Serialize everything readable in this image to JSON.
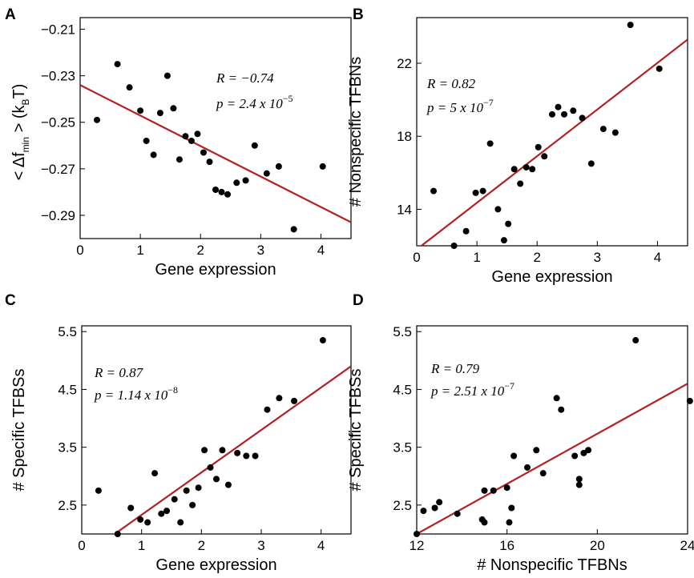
{
  "panels": [
    {
      "letter": "A"
    },
    {
      "letter": "B"
    },
    {
      "letter": "C"
    },
    {
      "letter": "D"
    }
  ],
  "chart_data": [
    {
      "panel": "A",
      "type": "scatter",
      "xlabel": "Gene expression",
      "ylabel": "< Δf_min > (k_B T)",
      "xlim": [
        0,
        4.5
      ],
      "ylim": [
        -0.3,
        -0.205
      ],
      "xticks": [
        "0",
        "1",
        "2",
        "3",
        "4"
      ],
      "yticks": [
        "-0.21",
        "-0.23",
        "-0.25",
        "-0.27",
        "-0.29"
      ],
      "stats": {
        "R": "R = −0.74",
        "p": "p = 2.4 x 10",
        "p_exp": "−5"
      },
      "regression": {
        "x": [
          0,
          4.5
        ],
        "y": [
          -0.234,
          -0.293
        ]
      },
      "points": [
        [
          0.28,
          -0.249
        ],
        [
          0.62,
          -0.225
        ],
        [
          0.82,
          -0.235
        ],
        [
          1.0,
          -0.245
        ],
        [
          1.1,
          -0.258
        ],
        [
          1.22,
          -0.264
        ],
        [
          1.33,
          -0.246
        ],
        [
          1.45,
          -0.23
        ],
        [
          1.55,
          -0.244
        ],
        [
          1.65,
          -0.266
        ],
        [
          1.75,
          -0.256
        ],
        [
          1.85,
          -0.258
        ],
        [
          1.95,
          -0.255
        ],
        [
          2.05,
          -0.263
        ],
        [
          2.15,
          -0.267
        ],
        [
          2.25,
          -0.279
        ],
        [
          2.35,
          -0.28
        ],
        [
          2.45,
          -0.281
        ],
        [
          2.6,
          -0.276
        ],
        [
          2.75,
          -0.275
        ],
        [
          2.9,
          -0.26
        ],
        [
          3.1,
          -0.272
        ],
        [
          3.3,
          -0.269
        ],
        [
          3.55,
          -0.296
        ],
        [
          4.03,
          -0.269
        ]
      ]
    },
    {
      "panel": "B",
      "type": "scatter",
      "xlabel": "Gene expression",
      "ylabel": "# Nonspecific TFBNs",
      "xlim": [
        0,
        4.5
      ],
      "ylim": [
        12,
        24.5
      ],
      "xticks": [
        "0",
        "1",
        "2",
        "3",
        "4"
      ],
      "yticks": [
        "14",
        "18",
        "22"
      ],
      "stats": {
        "R": "R = 0.82",
        "p": "p = 5 x 10",
        "p_exp": "−7"
      },
      "regression": {
        "x": [
          0,
          4.5
        ],
        "y": [
          11.8,
          23.3
        ]
      },
      "points": [
        [
          0.28,
          15.0
        ],
        [
          0.62,
          12.0
        ],
        [
          0.82,
          12.8
        ],
        [
          0.98,
          14.9
        ],
        [
          1.1,
          15.0
        ],
        [
          1.22,
          17.6
        ],
        [
          1.35,
          14.0
        ],
        [
          1.45,
          12.3
        ],
        [
          1.52,
          13.2
        ],
        [
          1.62,
          16.2
        ],
        [
          1.72,
          15.4
        ],
        [
          1.82,
          16.3
        ],
        [
          1.92,
          16.2
        ],
        [
          2.02,
          17.4
        ],
        [
          2.12,
          16.9
        ],
        [
          2.25,
          19.2
        ],
        [
          2.35,
          19.6
        ],
        [
          2.45,
          19.2
        ],
        [
          2.6,
          19.4
        ],
        [
          2.75,
          19.0
        ],
        [
          2.9,
          16.5
        ],
        [
          3.1,
          18.4
        ],
        [
          3.3,
          18.2
        ],
        [
          3.55,
          24.1
        ],
        [
          4.03,
          21.7
        ]
      ]
    },
    {
      "panel": "C",
      "type": "scatter",
      "xlabel": "Gene expression",
      "ylabel": "# Specific TFBSs",
      "xlim": [
        0,
        4.5
      ],
      "ylim": [
        2.0,
        5.6
      ],
      "xticks": [
        "0",
        "1",
        "2",
        "3",
        "4"
      ],
      "yticks": [
        "2.5",
        "3.5",
        "4.5",
        "5.5"
      ],
      "stats": {
        "R": "R = 0.87",
        "p": "p = 1.14 x 10",
        "p_exp": "−8"
      },
      "regression": {
        "x": [
          0.55,
          4.5
        ],
        "y": [
          2.0,
          4.9
        ]
      },
      "points": [
        [
          0.28,
          2.75
        ],
        [
          0.82,
          2.45
        ],
        [
          0.98,
          2.25
        ],
        [
          1.1,
          2.2
        ],
        [
          1.22,
          3.05
        ],
        [
          1.33,
          2.35
        ],
        [
          1.42,
          2.4
        ],
        [
          1.55,
          2.6
        ],
        [
          1.65,
          2.2
        ],
        [
          1.75,
          2.75
        ],
        [
          1.85,
          2.5
        ],
        [
          1.95,
          2.8
        ],
        [
          2.05,
          3.45
        ],
        [
          2.15,
          3.15
        ],
        [
          2.25,
          2.95
        ],
        [
          2.35,
          3.45
        ],
        [
          2.45,
          2.85
        ],
        [
          2.6,
          3.4
        ],
        [
          2.75,
          3.35
        ],
        [
          2.9,
          3.35
        ],
        [
          3.1,
          4.15
        ],
        [
          3.3,
          4.35
        ],
        [
          3.55,
          4.3
        ],
        [
          4.03,
          5.35
        ],
        [
          0.6,
          2.0
        ]
      ]
    },
    {
      "panel": "D",
      "type": "scatter",
      "xlabel": "# Nonspecific TFBNs",
      "ylabel": "# Specific TFBSs",
      "xlim": [
        12,
        24
      ],
      "ylim": [
        2.0,
        5.6
      ],
      "xticks": [
        "12",
        "16",
        "20",
        "24"
      ],
      "yticks": [
        "2.5",
        "3.5",
        "4.5",
        "5.5"
      ],
      "stats": {
        "R": "R = 0.79",
        "p": "p = 2.51 x 10",
        "p_exp": "−7"
      },
      "regression": {
        "x": [
          12,
          24
        ],
        "y": [
          2.0,
          4.6
        ]
      },
      "points": [
        [
          12.0,
          2.0
        ],
        [
          12.3,
          2.4
        ],
        [
          12.8,
          2.45
        ],
        [
          13.0,
          2.55
        ],
        [
          13.8,
          2.35
        ],
        [
          14.9,
          2.25
        ],
        [
          15.0,
          2.2
        ],
        [
          15.0,
          2.75
        ],
        [
          15.4,
          2.75
        ],
        [
          16.0,
          2.8
        ],
        [
          16.1,
          2.2
        ],
        [
          16.2,
          2.45
        ],
        [
          16.3,
          3.35
        ],
        [
          16.9,
          3.15
        ],
        [
          17.3,
          3.45
        ],
        [
          17.6,
          3.05
        ],
        [
          18.2,
          4.35
        ],
        [
          18.4,
          4.15
        ],
        [
          19.0,
          3.35
        ],
        [
          19.2,
          2.95
        ],
        [
          19.2,
          2.85
        ],
        [
          19.4,
          3.4
        ],
        [
          19.6,
          3.45
        ],
        [
          21.7,
          5.35
        ],
        [
          24.1,
          4.3
        ]
      ]
    }
  ]
}
